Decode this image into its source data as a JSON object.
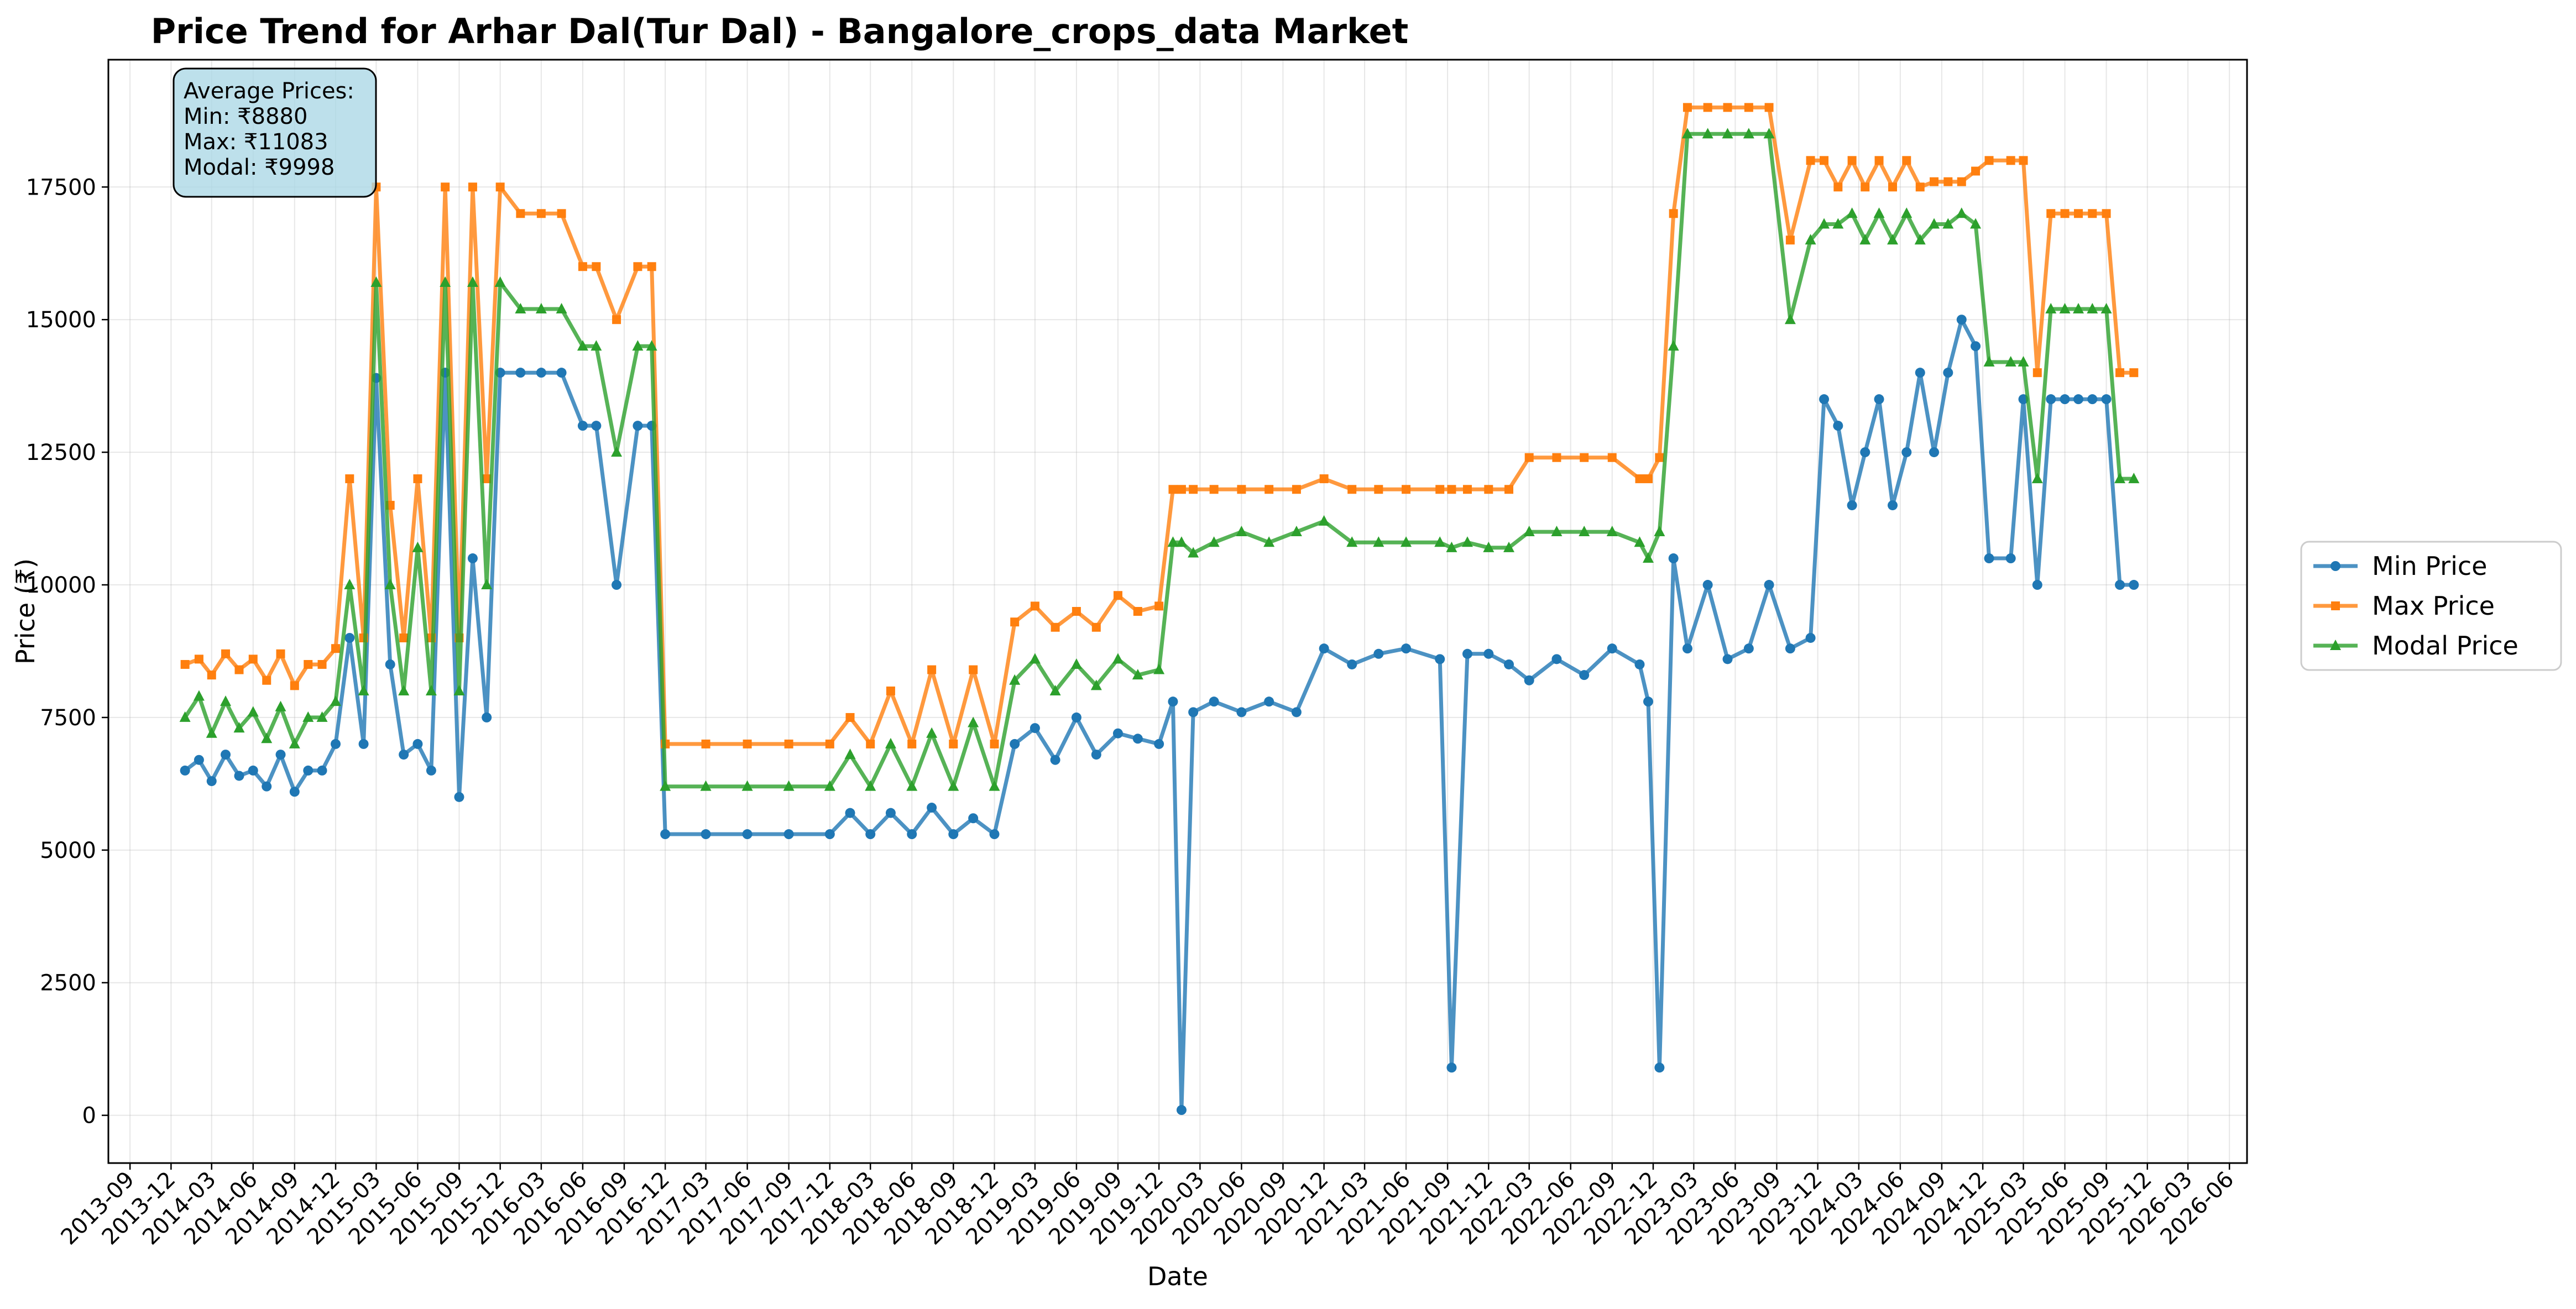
{
  "chart_data": {
    "type": "line",
    "title": "Price Trend for Arhar Dal(Tur Dal) - Bangalore_crops_data Market",
    "xlabel": "Date",
    "ylabel": "Price (₹)",
    "xlim": [
      "2013-07-15",
      "2026-07-10"
    ],
    "ylim": [
      -900,
      19900
    ],
    "grid": true,
    "legend_position": "outside-right",
    "x_ticks": [
      "2013-09",
      "2013-12",
      "2014-03",
      "2014-06",
      "2014-09",
      "2014-12",
      "2015-03",
      "2015-06",
      "2015-09",
      "2015-12",
      "2016-03",
      "2016-06",
      "2016-09",
      "2016-12",
      "2017-03",
      "2017-06",
      "2017-09",
      "2017-12",
      "2018-03",
      "2018-06",
      "2018-09",
      "2018-12",
      "2019-03",
      "2019-06",
      "2019-09",
      "2019-12",
      "2020-03",
      "2020-06",
      "2020-09",
      "2020-12",
      "2021-03",
      "2021-06",
      "2021-09",
      "2021-12",
      "2022-03",
      "2022-06",
      "2022-09",
      "2022-12",
      "2023-03",
      "2023-06",
      "2023-09",
      "2023-12",
      "2024-03",
      "2024-06",
      "2024-09",
      "2024-12",
      "2025-03",
      "2025-06",
      "2025-09",
      "2025-12",
      "2026-03",
      "2026-06"
    ],
    "y_ticks": [
      0,
      2500,
      5000,
      7500,
      10000,
      12500,
      15000,
      17500
    ],
    "y_tick_labels": [
      "0",
      "2500",
      "5000",
      "7500",
      "10000",
      "12500",
      "15000",
      "17500"
    ],
    "annotation": [
      "Average Prices:",
      "Min: ₹8880",
      "Max: ₹11083",
      "Modal: ₹9998"
    ],
    "series": [
      {
        "name": "Min Price",
        "color": "#1f77b4",
        "marker": "circle",
        "x": [
          "2014-01-01",
          "2014-02-01",
          "2014-03-01",
          "2014-04-01",
          "2014-05-01",
          "2014-06-01",
          "2014-07-01",
          "2014-08-01",
          "2014-09-01",
          "2014-10-01",
          "2014-11-01",
          "2014-12-01",
          "2015-01-01",
          "2015-02-01",
          "2015-03-01",
          "2015-04-01",
          "2015-05-01",
          "2015-06-01",
          "2015-07-01",
          "2015-08-01",
          "2015-09-01",
          "2015-10-01",
          "2015-11-01",
          "2015-12-01",
          "2016-01-15",
          "2016-03-01",
          "2016-04-15",
          "2016-06-01",
          "2016-07-01",
          "2016-08-15",
          "2016-10-01",
          "2016-11-01",
          "2016-12-01",
          "2017-03-01",
          "2017-06-01",
          "2017-09-01",
          "2017-12-01",
          "2018-01-15",
          "2018-03-01",
          "2018-04-15",
          "2018-06-01",
          "2018-07-15",
          "2018-09-01",
          "2018-10-15",
          "2018-12-01",
          "2019-01-15",
          "2019-03-01",
          "2019-04-15",
          "2019-06-01",
          "2019-07-15",
          "2019-09-01",
          "2019-10-15",
          "2019-12-01",
          "2020-01-01",
          "2020-01-20",
          "2020-02-15",
          "2020-04-01",
          "2020-06-01",
          "2020-08-01",
          "2020-10-01",
          "2020-12-01",
          "2021-02-01",
          "2021-04-01",
          "2021-06-01",
          "2021-08-15",
          "2021-09-10",
          "2021-10-15",
          "2021-12-01",
          "2022-01-15",
          "2022-03-01",
          "2022-05-01",
          "2022-07-01",
          "2022-09-01",
          "2022-11-01",
          "2022-11-20",
          "2022-12-15",
          "2023-01-15",
          "2023-02-15",
          "2023-04-01",
          "2023-05-15",
          "2023-07-01",
          "2023-08-15",
          "2023-10-01",
          "2023-11-15",
          "2023-12-15",
          "2024-01-15",
          "2024-02-15",
          "2024-03-15",
          "2024-04-15",
          "2024-05-15",
          "2024-06-15",
          "2024-07-15",
          "2024-08-15",
          "2024-09-15",
          "2024-10-15",
          "2024-11-15",
          "2024-12-15",
          "2025-02-01",
          "2025-03-01",
          "2025-04-01",
          "2025-05-01",
          "2025-06-01",
          "2025-07-01",
          "2025-08-01",
          "2025-09-01",
          "2025-10-01",
          "2025-11-01"
        ],
        "values": [
          6500,
          6700,
          6300,
          6800,
          6400,
          6500,
          6200,
          6800,
          6100,
          6500,
          6500,
          7000,
          9000,
          7000,
          13900,
          8500,
          6800,
          7000,
          6500,
          14000,
          6000,
          10500,
          7500,
          14000,
          14000,
          14000,
          14000,
          13000,
          13000,
          10000,
          13000,
          13000,
          5300,
          5300,
          5300,
          5300,
          5300,
          5700,
          5300,
          5700,
          5300,
          5800,
          5300,
          5600,
          5300,
          7000,
          7300,
          6700,
          7500,
          6800,
          7200,
          7100,
          7000,
          7800,
          100,
          7600,
          7800,
          7600,
          7800,
          7600,
          8800,
          8500,
          8700,
          8800,
          8600,
          900,
          8700,
          8700,
          8500,
          8200,
          8600,
          8300,
          8800,
          8500,
          7800,
          900,
          10500,
          8800,
          10000,
          8600,
          8800,
          10000,
          8800,
          9000,
          13500,
          13000,
          11500,
          12500,
          13500,
          11500,
          12500,
          14000,
          12500,
          14000,
          15000,
          14500,
          10500,
          10500,
          13500,
          10000,
          13500,
          13500,
          13500,
          13500,
          13500,
          10000,
          10000
        ]
      },
      {
        "name": "Max Price",
        "color": "#ff7f0e",
        "marker": "square",
        "x": [
          "2014-01-01",
          "2014-02-01",
          "2014-03-01",
          "2014-04-01",
          "2014-05-01",
          "2014-06-01",
          "2014-07-01",
          "2014-08-01",
          "2014-09-01",
          "2014-10-01",
          "2014-11-01",
          "2014-12-01",
          "2015-01-01",
          "2015-02-01",
          "2015-03-01",
          "2015-04-01",
          "2015-05-01",
          "2015-06-01",
          "2015-07-01",
          "2015-08-01",
          "2015-09-01",
          "2015-10-01",
          "2015-11-01",
          "2015-12-01",
          "2016-01-15",
          "2016-03-01",
          "2016-04-15",
          "2016-06-01",
          "2016-07-01",
          "2016-08-15",
          "2016-10-01",
          "2016-11-01",
          "2016-12-01",
          "2017-03-01",
          "2017-06-01",
          "2017-09-01",
          "2017-12-01",
          "2018-01-15",
          "2018-03-01",
          "2018-04-15",
          "2018-06-01",
          "2018-07-15",
          "2018-09-01",
          "2018-10-15",
          "2018-12-01",
          "2019-01-15",
          "2019-03-01",
          "2019-04-15",
          "2019-06-01",
          "2019-07-15",
          "2019-09-01",
          "2019-10-15",
          "2019-12-01",
          "2020-01-01",
          "2020-01-20",
          "2020-02-15",
          "2020-04-01",
          "2020-06-01",
          "2020-08-01",
          "2020-10-01",
          "2020-12-01",
          "2021-02-01",
          "2021-04-01",
          "2021-06-01",
          "2021-08-15",
          "2021-09-10",
          "2021-10-15",
          "2021-12-01",
          "2022-01-15",
          "2022-03-01",
          "2022-05-01",
          "2022-07-01",
          "2022-09-01",
          "2022-11-01",
          "2022-11-20",
          "2022-12-15",
          "2023-01-15",
          "2023-02-15",
          "2023-04-01",
          "2023-05-15",
          "2023-07-01",
          "2023-08-15",
          "2023-10-01",
          "2023-11-15",
          "2023-12-15",
          "2024-01-15",
          "2024-02-15",
          "2024-03-15",
          "2024-04-15",
          "2024-05-15",
          "2024-06-15",
          "2024-07-15",
          "2024-08-15",
          "2024-09-15",
          "2024-10-15",
          "2024-11-15",
          "2024-12-15",
          "2025-02-01",
          "2025-03-01",
          "2025-04-01",
          "2025-05-01",
          "2025-06-01",
          "2025-07-01",
          "2025-08-01",
          "2025-09-01",
          "2025-10-01",
          "2025-11-01"
        ],
        "values": [
          8500,
          8600,
          8300,
          8700,
          8400,
          8600,
          8200,
          8700,
          8100,
          8500,
          8500,
          8800,
          12000,
          9000,
          17500,
          11500,
          9000,
          12000,
          9000,
          17500,
          9000,
          17500,
          12000,
          17500,
          17000,
          17000,
          17000,
          16000,
          16000,
          15000,
          16000,
          16000,
          7000,
          7000,
          7000,
          7000,
          7000,
          7500,
          7000,
          8000,
          7000,
          8400,
          7000,
          8400,
          7000,
          9300,
          9600,
          9200,
          9500,
          9200,
          9800,
          9500,
          9600,
          11800,
          11800,
          11800,
          11800,
          11800,
          11800,
          11800,
          12000,
          11800,
          11800,
          11800,
          11800,
          11800,
          11800,
          11800,
          11800,
          12400,
          12400,
          12400,
          12400,
          12000,
          12000,
          12400,
          17000,
          19000,
          19000,
          19000,
          19000,
          19000,
          16500,
          18000,
          18000,
          17500,
          18000,
          17500,
          18000,
          17500,
          18000,
          17500,
          17600,
          17600,
          17600,
          17800,
          18000,
          18000,
          18000,
          14000,
          17000,
          17000,
          17000,
          17000,
          17000,
          14000,
          14000
        ]
      },
      {
        "name": "Modal Price",
        "color": "#2ca02c",
        "marker": "triangle",
        "x": [
          "2014-01-01",
          "2014-02-01",
          "2014-03-01",
          "2014-04-01",
          "2014-05-01",
          "2014-06-01",
          "2014-07-01",
          "2014-08-01",
          "2014-09-01",
          "2014-10-01",
          "2014-11-01",
          "2014-12-01",
          "2015-01-01",
          "2015-02-01",
          "2015-03-01",
          "2015-04-01",
          "2015-05-01",
          "2015-06-01",
          "2015-07-01",
          "2015-08-01",
          "2015-09-01",
          "2015-10-01",
          "2015-11-01",
          "2015-12-01",
          "2016-01-15",
          "2016-03-01",
          "2016-04-15",
          "2016-06-01",
          "2016-07-01",
          "2016-08-15",
          "2016-10-01",
          "2016-11-01",
          "2016-12-01",
          "2017-03-01",
          "2017-06-01",
          "2017-09-01",
          "2017-12-01",
          "2018-01-15",
          "2018-03-01",
          "2018-04-15",
          "2018-06-01",
          "2018-07-15",
          "2018-09-01",
          "2018-10-15",
          "2018-12-01",
          "2019-01-15",
          "2019-03-01",
          "2019-04-15",
          "2019-06-01",
          "2019-07-15",
          "2019-09-01",
          "2019-10-15",
          "2019-12-01",
          "2020-01-01",
          "2020-01-20",
          "2020-02-15",
          "2020-04-01",
          "2020-06-01",
          "2020-08-01",
          "2020-10-01",
          "2020-12-01",
          "2021-02-01",
          "2021-04-01",
          "2021-06-01",
          "2021-08-15",
          "2021-09-10",
          "2021-10-15",
          "2021-12-01",
          "2022-01-15",
          "2022-03-01",
          "2022-05-01",
          "2022-07-01",
          "2022-09-01",
          "2022-11-01",
          "2022-11-20",
          "2022-12-15",
          "2023-01-15",
          "2023-02-15",
          "2023-04-01",
          "2023-05-15",
          "2023-07-01",
          "2023-08-15",
          "2023-10-01",
          "2023-11-15",
          "2023-12-15",
          "2024-01-15",
          "2024-02-15",
          "2024-03-15",
          "2024-04-15",
          "2024-05-15",
          "2024-06-15",
          "2024-07-15",
          "2024-08-15",
          "2024-09-15",
          "2024-10-15",
          "2024-11-15",
          "2024-12-15",
          "2025-02-01",
          "2025-03-01",
          "2025-04-01",
          "2025-05-01",
          "2025-06-01",
          "2025-07-01",
          "2025-08-01",
          "2025-09-01",
          "2025-10-01",
          "2025-11-01"
        ],
        "values": [
          7500,
          7900,
          7200,
          7800,
          7300,
          7600,
          7100,
          7700,
          7000,
          7500,
          7500,
          7800,
          10000,
          8000,
          15700,
          10000,
          8000,
          10700,
          8000,
          15700,
          8000,
          15700,
          10000,
          15700,
          15200,
          15200,
          15200,
          14500,
          14500,
          12500,
          14500,
          14500,
          6200,
          6200,
          6200,
          6200,
          6200,
          6800,
          6200,
          7000,
          6200,
          7200,
          6200,
          7400,
          6200,
          8200,
          8600,
          8000,
          8500,
          8100,
          8600,
          8300,
          8400,
          10800,
          10800,
          10600,
          10800,
          11000,
          10800,
          11000,
          11200,
          10800,
          10800,
          10800,
          10800,
          10700,
          10800,
          10700,
          10700,
          11000,
          11000,
          11000,
          11000,
          10800,
          10500,
          11000,
          14500,
          18500,
          18500,
          18500,
          18500,
          18500,
          15000,
          16500,
          16800,
          16800,
          17000,
          16500,
          17000,
          16500,
          17000,
          16500,
          16800,
          16800,
          17000,
          16800,
          14200,
          14200,
          14200,
          12000,
          15200,
          15200,
          15200,
          15200,
          15200,
          12000,
          12000
        ]
      }
    ]
  }
}
